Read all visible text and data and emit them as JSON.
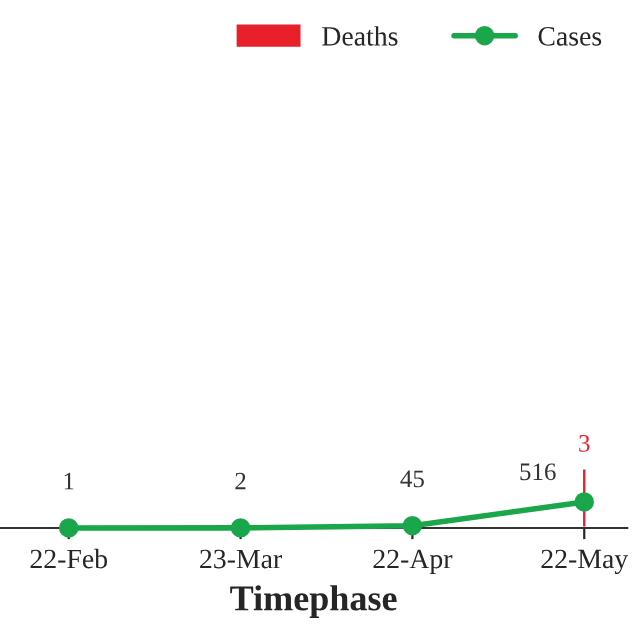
{
  "chart_data": {
    "type": "line",
    "xlabel": "Timephase",
    "categories": [
      "22-Feb",
      "23-Mar",
      "22-Apr",
      "22-May"
    ],
    "series": [
      {
        "name": "Deaths",
        "type": "bar",
        "axis": "y2",
        "color": "#e8202a",
        "values": [
          null,
          null,
          null,
          3
        ]
      },
      {
        "name": "Cases",
        "color": "#1aa64a",
        "values": [
          1,
          2,
          45,
          516
        ]
      }
    ],
    "tick_labels": "x",
    "data_labels": true,
    "marker": "circle",
    "line_style": "solid",
    "grid": false,
    "legend": "top right"
  }
}
